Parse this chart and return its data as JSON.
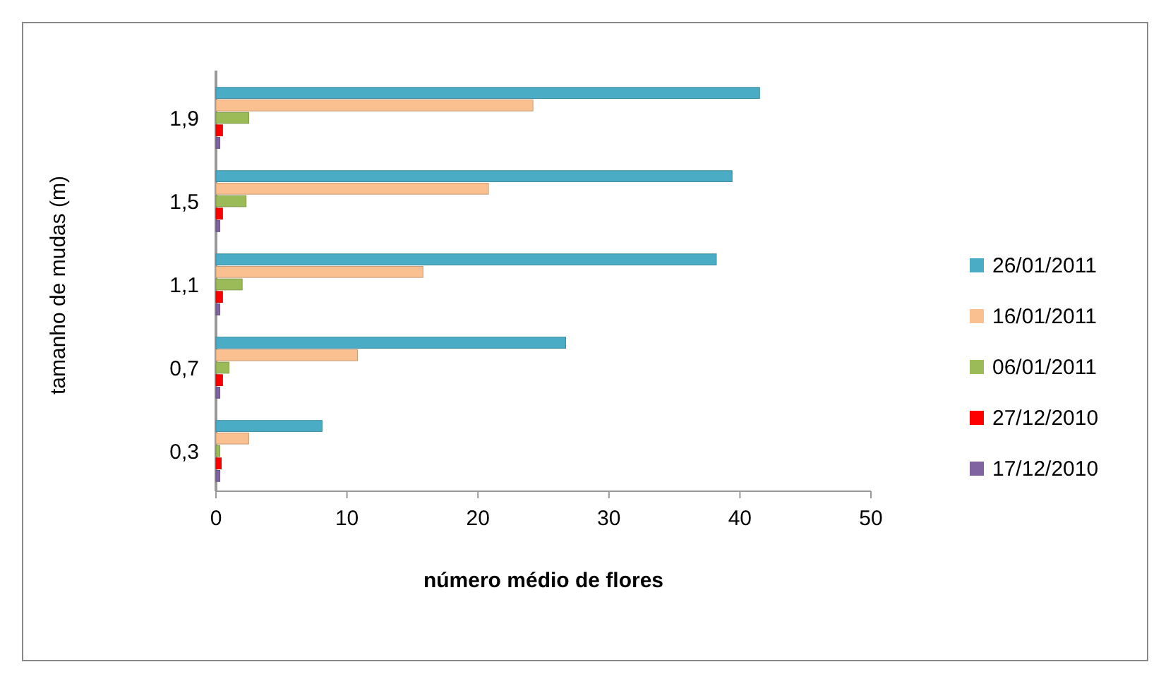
{
  "chart_data": {
    "type": "bar",
    "orientation": "horizontal",
    "xlabel": "número médio de flores",
    "ylabel": "tamanho de mudas (m)",
    "categories": [
      "1,9",
      "1,5",
      "1,1",
      "0,7",
      "0,3"
    ],
    "series": [
      {
        "name": "26/01/2011",
        "color": "#4bacc6",
        "values": [
          41.5,
          39.4,
          38.2,
          26.7,
          8.1
        ]
      },
      {
        "name": "16/01/2011",
        "color": "#fac090",
        "values": [
          24.2,
          20.8,
          15.8,
          10.8,
          2.5
        ]
      },
      {
        "name": "06/01/2011",
        "color": "#9bbb59",
        "values": [
          2.5,
          2.3,
          2.0,
          1.0,
          0.3
        ]
      },
      {
        "name": "27/12/2010",
        "color": "#ff0000",
        "values": [
          0.5,
          0.5,
          0.5,
          0.5,
          0.4
        ]
      },
      {
        "name": "17/12/2010",
        "color": "#8064a2",
        "values": [
          0.3,
          0.3,
          0.3,
          0.3,
          0.3
        ]
      }
    ],
    "xlim": [
      0,
      50
    ],
    "xticks": [
      0,
      10,
      20,
      30,
      40,
      50
    ],
    "grid": false,
    "legend": "right"
  }
}
